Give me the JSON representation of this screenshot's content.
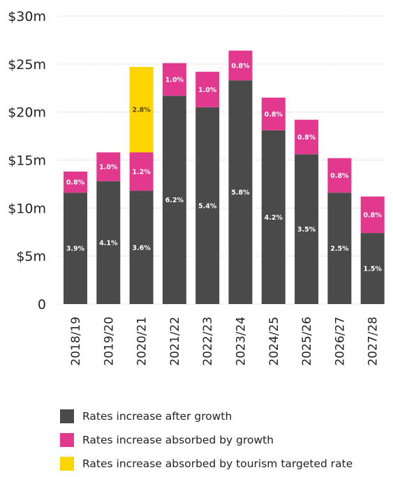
{
  "chart_data": {
    "type": "bar",
    "stacked": true,
    "categories": [
      "2018/19",
      "2019/20",
      "2020/21",
      "2021/22",
      "2022/23",
      "2023/24",
      "2024/25",
      "2025/26",
      "2026/27",
      "2027/28"
    ],
    "series": [
      {
        "name": "Rates increase after growth",
        "color": "#4a4a4a",
        "values": [
          11.6,
          12.8,
          11.8,
          21.7,
          20.5,
          23.3,
          18.1,
          15.6,
          11.6,
          7.4
        ],
        "labels": [
          "3.9%",
          "4.1%",
          "3.6%",
          "6.2%",
          "5.4%",
          "5.8%",
          "4.2%",
          "3.5%",
          "2.5%",
          "1.5%"
        ]
      },
      {
        "name": "Rates increase absorbed by growth",
        "color": "#e2388e",
        "values": [
          2.2,
          3.0,
          4.0,
          3.4,
          3.7,
          3.1,
          3.4,
          3.6,
          3.6,
          3.8
        ],
        "labels": [
          "0.8%",
          "1.0%",
          "1.2%",
          "1.0%",
          "1.0%",
          "0.8%",
          "0.8%",
          "0.8%",
          "0.8%",
          "0.8%"
        ]
      },
      {
        "name": "Rates increase absorbed by tourism targeted rate",
        "color": "#ffd500",
        "values": [
          0,
          0,
          8.9,
          0,
          0,
          0,
          0,
          0,
          0,
          0
        ],
        "labels": [
          "",
          "",
          "2.8%",
          "",
          "",
          "",
          "",
          "",
          "",
          ""
        ]
      }
    ],
    "yticks": [
      0,
      5,
      10,
      15,
      20,
      25,
      30
    ],
    "ytick_labels": [
      "0",
      "$5m",
      "$10m",
      "$15m",
      "$20m",
      "$25m",
      "$30m"
    ],
    "ylim": [
      0,
      30
    ],
    "xlabel": "",
    "ylabel": "",
    "grid": true,
    "legend_position": "bottom-left"
  }
}
